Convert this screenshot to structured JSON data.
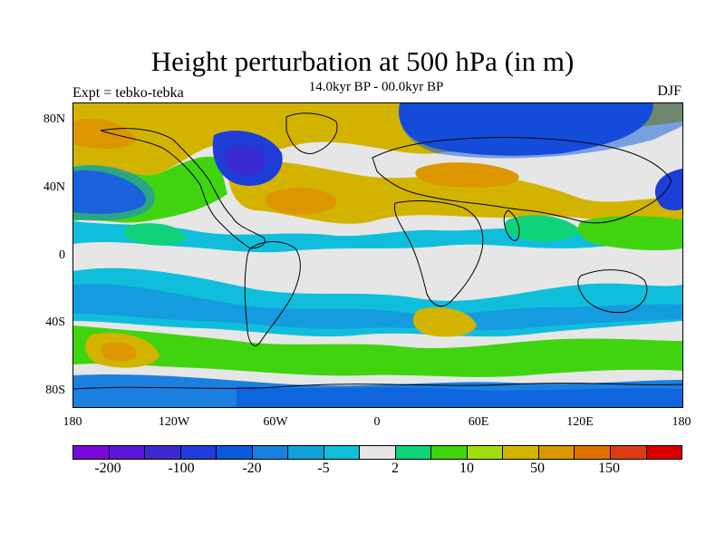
{
  "title": "Height perturbation at 500 hPa (in m)",
  "subtitle": "14.0kyr BP - 00.0kyr BP",
  "left_label": "Expt = tebko-tebka",
  "right_label": "DJF",
  "y_axis_labels": [
    "80N",
    "40N",
    "0",
    "40S",
    "80S"
  ],
  "x_axis_labels": [
    "180",
    "120W",
    "60W",
    "0",
    "60E",
    "120E",
    "180"
  ],
  "colorbar": {
    "colors": [
      "#7a0ad8",
      "#5a18d6",
      "#3a2ad0",
      "#1e3cd8",
      "#0a5adc",
      "#1a80e0",
      "#12a0dc",
      "#10bedc",
      "#e6e6e6",
      "#10d27a",
      "#40d410",
      "#a0dc10",
      "#d2b400",
      "#dc9600",
      "#e07000",
      "#dc3c14",
      "#d80000"
    ],
    "labels": [
      "-200",
      "-100",
      "-20",
      "-5",
      "2",
      "10",
      "50",
      "150"
    ]
  },
  "palette": {
    "light_blue": "#10bedc",
    "mid_blue": "#12a0dc",
    "blue": "#1a80e0",
    "deep_blue": "#0a5adc",
    "navy": "#1e3cd8",
    "violet": "#3a2ad0",
    "grey": "#e6e6e6",
    "green": "#10d27a",
    "lime_green": "#40d410",
    "yellow_green": "#a0dc10",
    "gold": "#d2b400",
    "orange": "#dc9600",
    "dark_orange": "#e07000"
  }
}
